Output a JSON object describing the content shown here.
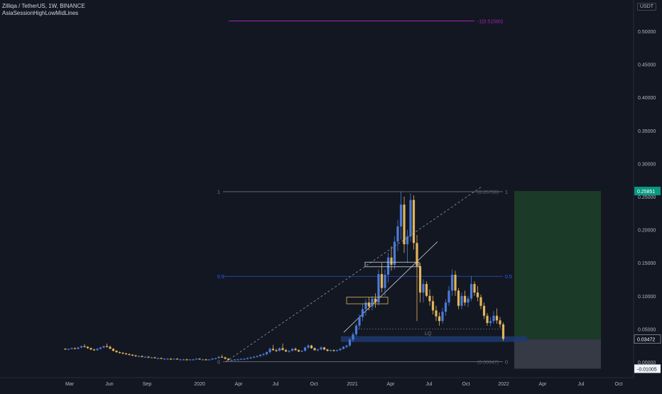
{
  "header": {
    "symbol_title": "Zilliqa / TetherUS, 1W, BINANCE",
    "indicator_name": "AsiaSessionHighLowMidLines"
  },
  "currency_button": "USDT",
  "colors": {
    "background": "#131722",
    "bull": "#4a7bd8",
    "bear": "#e2b55a",
    "fib_gray": "#787b86",
    "fib_blue": "#2962ff",
    "fib_purple": "#9c27b0",
    "target_zone": "#1b3a28",
    "stop_zone": "#363a45",
    "entry_zone": "#1e3a6e",
    "price_green": "#089981"
  },
  "chart_data": {
    "type": "candlestick",
    "title": "Zilliqa / TetherUS, 1W, BINANCE",
    "y_axis": {
      "ticks": [
        "0.50000",
        "0.45000",
        "0.40000",
        "0.35000",
        "0.30000",
        "0.25000",
        "0.20000",
        "0.15000",
        "0.10000",
        "0.05000",
        "0.00000"
      ],
      "range": [
        -0.016,
        0.55
      ]
    },
    "x_axis": {
      "ticks": [
        "Mar",
        "Jun",
        "Sep",
        "2020",
        "Apr",
        "Jul",
        "Oct",
        "2021",
        "Apr",
        "Jul",
        "Oct",
        "2022",
        "Apr",
        "Jul",
        "Oct"
      ]
    },
    "price_labels": [
      {
        "label": "0.25851",
        "value": 0.25851,
        "kind": "target"
      },
      {
        "label": "0.03472",
        "value": 0.03472,
        "kind": "last"
      },
      {
        "label": "-0.01005",
        "value": -0.01005,
        "kind": "stop"
      }
    ],
    "fib_levels": [
      {
        "level_text": "1",
        "price_text": "(0.25756)",
        "value": 0.25756,
        "color": "gray"
      },
      {
        "level_text": "0.5",
        "price_text": "",
        "value": 0.1296,
        "color": "blue"
      },
      {
        "level_text": "0",
        "price_text": "(0.00047)",
        "value": 0.00047,
        "color": "gray"
      },
      {
        "level_text": "-1",
        "price_text": "(0.51560)",
        "value": 0.5156,
        "color": "purple"
      }
    ],
    "annotations": [
      {
        "text": "LQ",
        "value": 0.044
      }
    ],
    "candles": [
      {
        "o": 0.02,
        "h": 0.021,
        "l": 0.019,
        "c": 0.019
      },
      {
        "o": 0.019,
        "h": 0.02,
        "l": 0.018,
        "c": 0.02
      },
      {
        "o": 0.02,
        "h": 0.022,
        "l": 0.019,
        "c": 0.021
      },
      {
        "o": 0.021,
        "h": 0.022,
        "l": 0.02,
        "c": 0.02
      },
      {
        "o": 0.02,
        "h": 0.023,
        "l": 0.019,
        "c": 0.022
      },
      {
        "o": 0.022,
        "h": 0.025,
        "l": 0.021,
        "c": 0.024
      },
      {
        "o": 0.024,
        "h": 0.027,
        "l": 0.022,
        "c": 0.023
      },
      {
        "o": 0.023,
        "h": 0.024,
        "l": 0.02,
        "c": 0.021
      },
      {
        "o": 0.021,
        "h": 0.022,
        "l": 0.018,
        "c": 0.019
      },
      {
        "o": 0.019,
        "h": 0.02,
        "l": 0.017,
        "c": 0.018
      },
      {
        "o": 0.018,
        "h": 0.021,
        "l": 0.017,
        "c": 0.02
      },
      {
        "o": 0.02,
        "h": 0.023,
        "l": 0.019,
        "c": 0.022
      },
      {
        "o": 0.022,
        "h": 0.025,
        "l": 0.021,
        "c": 0.024
      },
      {
        "o": 0.024,
        "h": 0.028,
        "l": 0.022,
        "c": 0.023
      },
      {
        "o": 0.023,
        "h": 0.025,
        "l": 0.02,
        "c": 0.02
      },
      {
        "o": 0.02,
        "h": 0.021,
        "l": 0.016,
        "c": 0.017
      },
      {
        "o": 0.017,
        "h": 0.018,
        "l": 0.014,
        "c": 0.015
      },
      {
        "o": 0.015,
        "h": 0.016,
        "l": 0.013,
        "c": 0.014
      },
      {
        "o": 0.014,
        "h": 0.015,
        "l": 0.012,
        "c": 0.013
      },
      {
        "o": 0.013,
        "h": 0.014,
        "l": 0.011,
        "c": 0.012
      },
      {
        "o": 0.012,
        "h": 0.013,
        "l": 0.01,
        "c": 0.011
      },
      {
        "o": 0.011,
        "h": 0.012,
        "l": 0.009,
        "c": 0.01
      },
      {
        "o": 0.01,
        "h": 0.011,
        "l": 0.008,
        "c": 0.009
      },
      {
        "o": 0.009,
        "h": 0.01,
        "l": 0.008,
        "c": 0.009
      },
      {
        "o": 0.009,
        "h": 0.01,
        "l": 0.007,
        "c": 0.008
      },
      {
        "o": 0.008,
        "h": 0.009,
        "l": 0.007,
        "c": 0.008
      },
      {
        "o": 0.008,
        "h": 0.009,
        "l": 0.006,
        "c": 0.007
      },
      {
        "o": 0.007,
        "h": 0.008,
        "l": 0.006,
        "c": 0.007
      },
      {
        "o": 0.007,
        "h": 0.008,
        "l": 0.006,
        "c": 0.006
      },
      {
        "o": 0.006,
        "h": 0.007,
        "l": 0.005,
        "c": 0.006
      },
      {
        "o": 0.006,
        "h": 0.007,
        "l": 0.005,
        "c": 0.005
      },
      {
        "o": 0.005,
        "h": 0.006,
        "l": 0.004,
        "c": 0.005
      },
      {
        "o": 0.005,
        "h": 0.006,
        "l": 0.004,
        "c": 0.005
      },
      {
        "o": 0.005,
        "h": 0.006,
        "l": 0.004,
        "c": 0.004
      },
      {
        "o": 0.004,
        "h": 0.005,
        "l": 0.004,
        "c": 0.005
      },
      {
        "o": 0.005,
        "h": 0.006,
        "l": 0.004,
        "c": 0.004
      },
      {
        "o": 0.004,
        "h": 0.005,
        "l": 0.003,
        "c": 0.004
      },
      {
        "o": 0.004,
        "h": 0.005,
        "l": 0.003,
        "c": 0.004
      },
      {
        "o": 0.004,
        "h": 0.005,
        "l": 0.003,
        "c": 0.003
      },
      {
        "o": 0.003,
        "h": 0.004,
        "l": 0.003,
        "c": 0.004
      },
      {
        "o": 0.004,
        "h": 0.005,
        "l": 0.003,
        "c": 0.004
      },
      {
        "o": 0.004,
        "h": 0.006,
        "l": 0.004,
        "c": 0.005
      },
      {
        "o": 0.005,
        "h": 0.006,
        "l": 0.004,
        "c": 0.004
      },
      {
        "o": 0.004,
        "h": 0.005,
        "l": 0.003,
        "c": 0.004
      },
      {
        "o": 0.004,
        "h": 0.005,
        "l": 0.003,
        "c": 0.003
      },
      {
        "o": 0.003,
        "h": 0.004,
        "l": 0.003,
        "c": 0.004
      },
      {
        "o": 0.004,
        "h": 0.006,
        "l": 0.003,
        "c": 0.005
      },
      {
        "o": 0.005,
        "h": 0.006,
        "l": 0.004,
        "c": 0.006
      },
      {
        "o": 0.006,
        "h": 0.009,
        "l": 0.005,
        "c": 0.008
      },
      {
        "o": 0.008,
        "h": 0.011,
        "l": 0.007,
        "c": 0.007
      },
      {
        "o": 0.007,
        "h": 0.008,
        "l": 0.004,
        "c": 0.005
      },
      {
        "o": 0.005,
        "h": 0.006,
        "l": 0.002,
        "c": 0.003
      },
      {
        "o": 0.003,
        "h": 0.004,
        "l": 0.002,
        "c": 0.003
      },
      {
        "o": 0.003,
        "h": 0.004,
        "l": 0.002,
        "c": 0.004
      },
      {
        "o": 0.004,
        "h": 0.005,
        "l": 0.003,
        "c": 0.004
      },
      {
        "o": 0.004,
        "h": 0.005,
        "l": 0.003,
        "c": 0.005
      },
      {
        "o": 0.005,
        "h": 0.006,
        "l": 0.004,
        "c": 0.005
      },
      {
        "o": 0.005,
        "h": 0.007,
        "l": 0.004,
        "c": 0.006
      },
      {
        "o": 0.006,
        "h": 0.008,
        "l": 0.005,
        "c": 0.007
      },
      {
        "o": 0.007,
        "h": 0.009,
        "l": 0.006,
        "c": 0.008
      },
      {
        "o": 0.008,
        "h": 0.01,
        "l": 0.007,
        "c": 0.009
      },
      {
        "o": 0.009,
        "h": 0.012,
        "l": 0.008,
        "c": 0.011
      },
      {
        "o": 0.011,
        "h": 0.014,
        "l": 0.009,
        "c": 0.012
      },
      {
        "o": 0.012,
        "h": 0.016,
        "l": 0.01,
        "c": 0.015
      },
      {
        "o": 0.015,
        "h": 0.022,
        "l": 0.013,
        "c": 0.02
      },
      {
        "o": 0.02,
        "h": 0.026,
        "l": 0.017,
        "c": 0.018
      },
      {
        "o": 0.018,
        "h": 0.02,
        "l": 0.015,
        "c": 0.017
      },
      {
        "o": 0.017,
        "h": 0.022,
        "l": 0.016,
        "c": 0.021
      },
      {
        "o": 0.021,
        "h": 0.028,
        "l": 0.019,
        "c": 0.018
      },
      {
        "o": 0.018,
        "h": 0.02,
        "l": 0.015,
        "c": 0.016
      },
      {
        "o": 0.016,
        "h": 0.018,
        "l": 0.014,
        "c": 0.017
      },
      {
        "o": 0.017,
        "h": 0.021,
        "l": 0.016,
        "c": 0.02
      },
      {
        "o": 0.02,
        "h": 0.022,
        "l": 0.017,
        "c": 0.018
      },
      {
        "o": 0.018,
        "h": 0.019,
        "l": 0.015,
        "c": 0.016
      },
      {
        "o": 0.016,
        "h": 0.018,
        "l": 0.015,
        "c": 0.017
      },
      {
        "o": 0.017,
        "h": 0.023,
        "l": 0.016,
        "c": 0.022
      },
      {
        "o": 0.022,
        "h": 0.027,
        "l": 0.02,
        "c": 0.025
      },
      {
        "o": 0.025,
        "h": 0.026,
        "l": 0.02,
        "c": 0.021
      },
      {
        "o": 0.021,
        "h": 0.022,
        "l": 0.017,
        "c": 0.018
      },
      {
        "o": 0.018,
        "h": 0.02,
        "l": 0.016,
        "c": 0.019
      },
      {
        "o": 0.019,
        "h": 0.024,
        "l": 0.018,
        "c": 0.022
      },
      {
        "o": 0.022,
        "h": 0.023,
        "l": 0.018,
        "c": 0.019
      },
      {
        "o": 0.019,
        "h": 0.02,
        "l": 0.016,
        "c": 0.017
      },
      {
        "o": 0.017,
        "h": 0.019,
        "l": 0.016,
        "c": 0.018
      },
      {
        "o": 0.018,
        "h": 0.019,
        "l": 0.016,
        "c": 0.017
      },
      {
        "o": 0.017,
        "h": 0.019,
        "l": 0.016,
        "c": 0.018
      },
      {
        "o": 0.018,
        "h": 0.021,
        "l": 0.017,
        "c": 0.02
      },
      {
        "o": 0.02,
        "h": 0.024,
        "l": 0.019,
        "c": 0.023
      },
      {
        "o": 0.023,
        "h": 0.026,
        "l": 0.021,
        "c": 0.025
      },
      {
        "o": 0.025,
        "h": 0.036,
        "l": 0.023,
        "c": 0.034
      },
      {
        "o": 0.034,
        "h": 0.045,
        "l": 0.03,
        "c": 0.042
      },
      {
        "o": 0.042,
        "h": 0.058,
        "l": 0.039,
        "c": 0.055
      },
      {
        "o": 0.055,
        "h": 0.072,
        "l": 0.05,
        "c": 0.068
      },
      {
        "o": 0.068,
        "h": 0.088,
        "l": 0.062,
        "c": 0.08
      },
      {
        "o": 0.08,
        "h": 0.095,
        "l": 0.07,
        "c": 0.09
      },
      {
        "o": 0.09,
        "h": 0.098,
        "l": 0.078,
        "c": 0.084
      },
      {
        "o": 0.084,
        "h": 0.1,
        "l": 0.078,
        "c": 0.096
      },
      {
        "o": 0.096,
        "h": 0.104,
        "l": 0.082,
        "c": 0.09
      },
      {
        "o": 0.09,
        "h": 0.14,
        "l": 0.086,
        "c": 0.133
      },
      {
        "o": 0.133,
        "h": 0.15,
        "l": 0.105,
        "c": 0.112
      },
      {
        "o": 0.112,
        "h": 0.14,
        "l": 0.1,
        "c": 0.132
      },
      {
        "o": 0.132,
        "h": 0.165,
        "l": 0.12,
        "c": 0.158
      },
      {
        "o": 0.158,
        "h": 0.175,
        "l": 0.138,
        "c": 0.147
      },
      {
        "o": 0.147,
        "h": 0.19,
        "l": 0.14,
        "c": 0.182
      },
      {
        "o": 0.182,
        "h": 0.215,
        "l": 0.168,
        "c": 0.205
      },
      {
        "o": 0.205,
        "h": 0.258,
        "l": 0.185,
        "c": 0.238
      },
      {
        "o": 0.238,
        "h": 0.25,
        "l": 0.165,
        "c": 0.178
      },
      {
        "o": 0.178,
        "h": 0.2,
        "l": 0.15,
        "c": 0.19
      },
      {
        "o": 0.19,
        "h": 0.255,
        "l": 0.182,
        "c": 0.245
      },
      {
        "o": 0.245,
        "h": 0.252,
        "l": 0.17,
        "c": 0.18
      },
      {
        "o": 0.18,
        "h": 0.192,
        "l": 0.062,
        "c": 0.145
      },
      {
        "o": 0.145,
        "h": 0.15,
        "l": 0.09,
        "c": 0.105
      },
      {
        "o": 0.105,
        "h": 0.125,
        "l": 0.09,
        "c": 0.118
      },
      {
        "o": 0.118,
        "h": 0.122,
        "l": 0.098,
        "c": 0.1
      },
      {
        "o": 0.1,
        "h": 0.11,
        "l": 0.085,
        "c": 0.092
      },
      {
        "o": 0.092,
        "h": 0.1,
        "l": 0.072,
        "c": 0.078
      },
      {
        "o": 0.078,
        "h": 0.085,
        "l": 0.062,
        "c": 0.069
      },
      {
        "o": 0.069,
        "h": 0.075,
        "l": 0.055,
        "c": 0.062
      },
      {
        "o": 0.062,
        "h": 0.082,
        "l": 0.058,
        "c": 0.076
      },
      {
        "o": 0.076,
        "h": 0.095,
        "l": 0.07,
        "c": 0.09
      },
      {
        "o": 0.09,
        "h": 0.115,
        "l": 0.085,
        "c": 0.108
      },
      {
        "o": 0.108,
        "h": 0.14,
        "l": 0.1,
        "c": 0.132
      },
      {
        "o": 0.132,
        "h": 0.138,
        "l": 0.1,
        "c": 0.108
      },
      {
        "o": 0.108,
        "h": 0.112,
        "l": 0.08,
        "c": 0.085
      },
      {
        "o": 0.085,
        "h": 0.105,
        "l": 0.08,
        "c": 0.1
      },
      {
        "o": 0.1,
        "h": 0.108,
        "l": 0.085,
        "c": 0.09
      },
      {
        "o": 0.09,
        "h": 0.1,
        "l": 0.083,
        "c": 0.096
      },
      {
        "o": 0.096,
        "h": 0.13,
        "l": 0.092,
        "c": 0.118
      },
      {
        "o": 0.118,
        "h": 0.122,
        "l": 0.1,
        "c": 0.105
      },
      {
        "o": 0.105,
        "h": 0.115,
        "l": 0.092,
        "c": 0.098
      },
      {
        "o": 0.098,
        "h": 0.102,
        "l": 0.08,
        "c": 0.085
      },
      {
        "o": 0.085,
        "h": 0.09,
        "l": 0.065,
        "c": 0.07
      },
      {
        "o": 0.07,
        "h": 0.074,
        "l": 0.055,
        "c": 0.059
      },
      {
        "o": 0.059,
        "h": 0.068,
        "l": 0.054,
        "c": 0.062
      },
      {
        "o": 0.062,
        "h": 0.077,
        "l": 0.058,
        "c": 0.07
      },
      {
        "o": 0.07,
        "h": 0.081,
        "l": 0.058,
        "c": 0.063
      },
      {
        "o": 0.063,
        "h": 0.068,
        "l": 0.052,
        "c": 0.057
      },
      {
        "o": 0.057,
        "h": 0.06,
        "l": 0.032,
        "c": 0.035
      }
    ]
  }
}
